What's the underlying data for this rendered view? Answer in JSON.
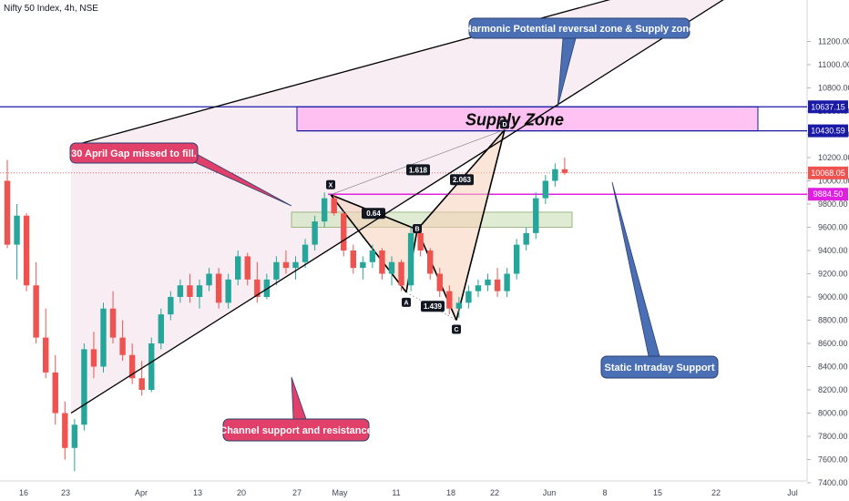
{
  "header": {
    "title": "Nifty 50 Index, 4h, NSE"
  },
  "colors": {
    "up": "#26a69a",
    "down": "#ef5350",
    "channel_fill": "#f3e4ec",
    "supply_fill": "#ffb3f0",
    "pattern_fill": "#f6d0b8",
    "green_box": "#d7e6c8",
    "blue_line": "#1a1aa6",
    "magenta_line": "#e020e0",
    "callout_blue": "#4a6fb5",
    "callout_pink": "#e0406a"
  },
  "chart_data": {
    "type": "candlestick",
    "ylim": [
      7400,
      11400
    ],
    "y_ticks": [
      "11200.00",
      "11000.00",
      "10800.00",
      "10600.00",
      "10400.00",
      "10200.00",
      "10000.00",
      "9800.00",
      "9600.00",
      "9400.00",
      "9200.00",
      "9000.00",
      "8800.00",
      "8600.00",
      "8400.00",
      "8200.00",
      "8000.00",
      "7800.00",
      "7600.00",
      "7400.00"
    ],
    "x_ticks": [
      "16",
      "23",
      "Apr",
      "13",
      "20",
      "27",
      "May",
      "11",
      "18",
      "22",
      "Jun",
      "8",
      "15",
      "22",
      "Jul"
    ],
    "price_labels": [
      {
        "label": "10637.15",
        "value": 10637.15,
        "color": "#1a1aa6"
      },
      {
        "label": "10430.59",
        "value": 10430.59,
        "color": "#1a1aa6"
      },
      {
        "label": "10068.05",
        "value": 10068.05,
        "color": "#ef5350"
      },
      {
        "label": "9884.50",
        "value": 9884.5,
        "color": "#e020e0"
      }
    ],
    "candles": [
      [
        10000,
        10180,
        9420,
        9450
      ],
      [
        9450,
        9800,
        9150,
        9700
      ],
      [
        9700,
        9720,
        9050,
        9100
      ],
      [
        9100,
        9300,
        8600,
        8650
      ],
      [
        8650,
        8900,
        8300,
        8350
      ],
      [
        8350,
        8500,
        7900,
        8000
      ],
      [
        8000,
        8100,
        7600,
        7700
      ],
      [
        7700,
        7950,
        7500,
        7900
      ],
      [
        7900,
        8600,
        7850,
        8550
      ],
      [
        8550,
        8700,
        8300,
        8400
      ],
      [
        8400,
        8950,
        8350,
        8900
      ],
      [
        8900,
        9050,
        8600,
        8650
      ],
      [
        8650,
        8800,
        8450,
        8500
      ],
      [
        8500,
        8600,
        8250,
        8300
      ],
      [
        8300,
        8450,
        8150,
        8200
      ],
      [
        8200,
        8650,
        8180,
        8600
      ],
      [
        8600,
        8900,
        8550,
        8850
      ],
      [
        8850,
        9050,
        8800,
        9000
      ],
      [
        9000,
        9150,
        8950,
        9100
      ],
      [
        9100,
        9200,
        8950,
        9000
      ],
      [
        9000,
        9150,
        8900,
        9100
      ],
      [
        9100,
        9250,
        9050,
        9200
      ],
      [
        9200,
        9250,
        8900,
        8950
      ],
      [
        8950,
        9200,
        8900,
        9150
      ],
      [
        9150,
        9400,
        9100,
        9350
      ],
      [
        9350,
        9380,
        9100,
        9150
      ],
      [
        9150,
        9300,
        8950,
        9000
      ],
      [
        9000,
        9200,
        8980,
        9150
      ],
      [
        9150,
        9350,
        9100,
        9300
      ],
      [
        9300,
        9400,
        9200,
        9250
      ],
      [
        9250,
        9350,
        9150,
        9300
      ],
      [
        9300,
        9500,
        9250,
        9450
      ],
      [
        9450,
        9700,
        9400,
        9650
      ],
      [
        9650,
        9900,
        9600,
        9850
      ],
      [
        9850,
        9880,
        9700,
        9720
      ],
      [
        9720,
        9740,
        9350,
        9400
      ],
      [
        9400,
        9450,
        9200,
        9250
      ],
      [
        9250,
        9350,
        9150,
        9300
      ],
      [
        9300,
        9450,
        9250,
        9400
      ],
      [
        9400,
        9420,
        9150,
        9200
      ],
      [
        9200,
        9350,
        9100,
        9300
      ],
      [
        9300,
        9320,
        9050,
        9100
      ],
      [
        9100,
        9600,
        9050,
        9550
      ],
      [
        9550,
        9580,
        9350,
        9400
      ],
      [
        9400,
        9420,
        9150,
        9200
      ],
      [
        9200,
        9250,
        9000,
        9050
      ],
      [
        9050,
        9100,
        8850,
        8900
      ],
      [
        8900,
        9000,
        8820,
        8950
      ],
      [
        8950,
        9100,
        8900,
        9050
      ],
      [
        9050,
        9150,
        9000,
        9100
      ],
      [
        9100,
        9200,
        9050,
        9150
      ],
      [
        9150,
        9250,
        9000,
        9050
      ],
      [
        9050,
        9250,
        9000,
        9200
      ],
      [
        9200,
        9500,
        9150,
        9450
      ],
      [
        9450,
        9600,
        9400,
        9550
      ],
      [
        9550,
        9900,
        9500,
        9850
      ],
      [
        9850,
        10050,
        9800,
        10000
      ],
      [
        10000,
        10150,
        9950,
        10100
      ],
      [
        10100,
        10200,
        10050,
        10068.05
      ]
    ],
    "series": [
      {
        "name": "Channel upper",
        "line": [
          [
            20,
            10600
          ],
          [
            40,
            11050
          ]
        ]
      },
      {
        "name": "Channel lower",
        "line": [
          [
            -1,
            7600
          ],
          [
            40,
            9750
          ]
        ]
      }
    ]
  },
  "annotations": {
    "supply_zone": "Supply Zone",
    "callouts": [
      {
        "text": "Harmonic Potential reversal zone & Supply zone"
      },
      {
        "text": "30 April Gap missed to fill."
      },
      {
        "text": "Static Intraday Support"
      },
      {
        "text": "Channel support and resistance"
      }
    ],
    "points": [
      "X",
      "A",
      "B",
      "C",
      "D"
    ],
    "ratios": [
      "1.618",
      "0.64",
      "2.063",
      "1.439"
    ]
  }
}
